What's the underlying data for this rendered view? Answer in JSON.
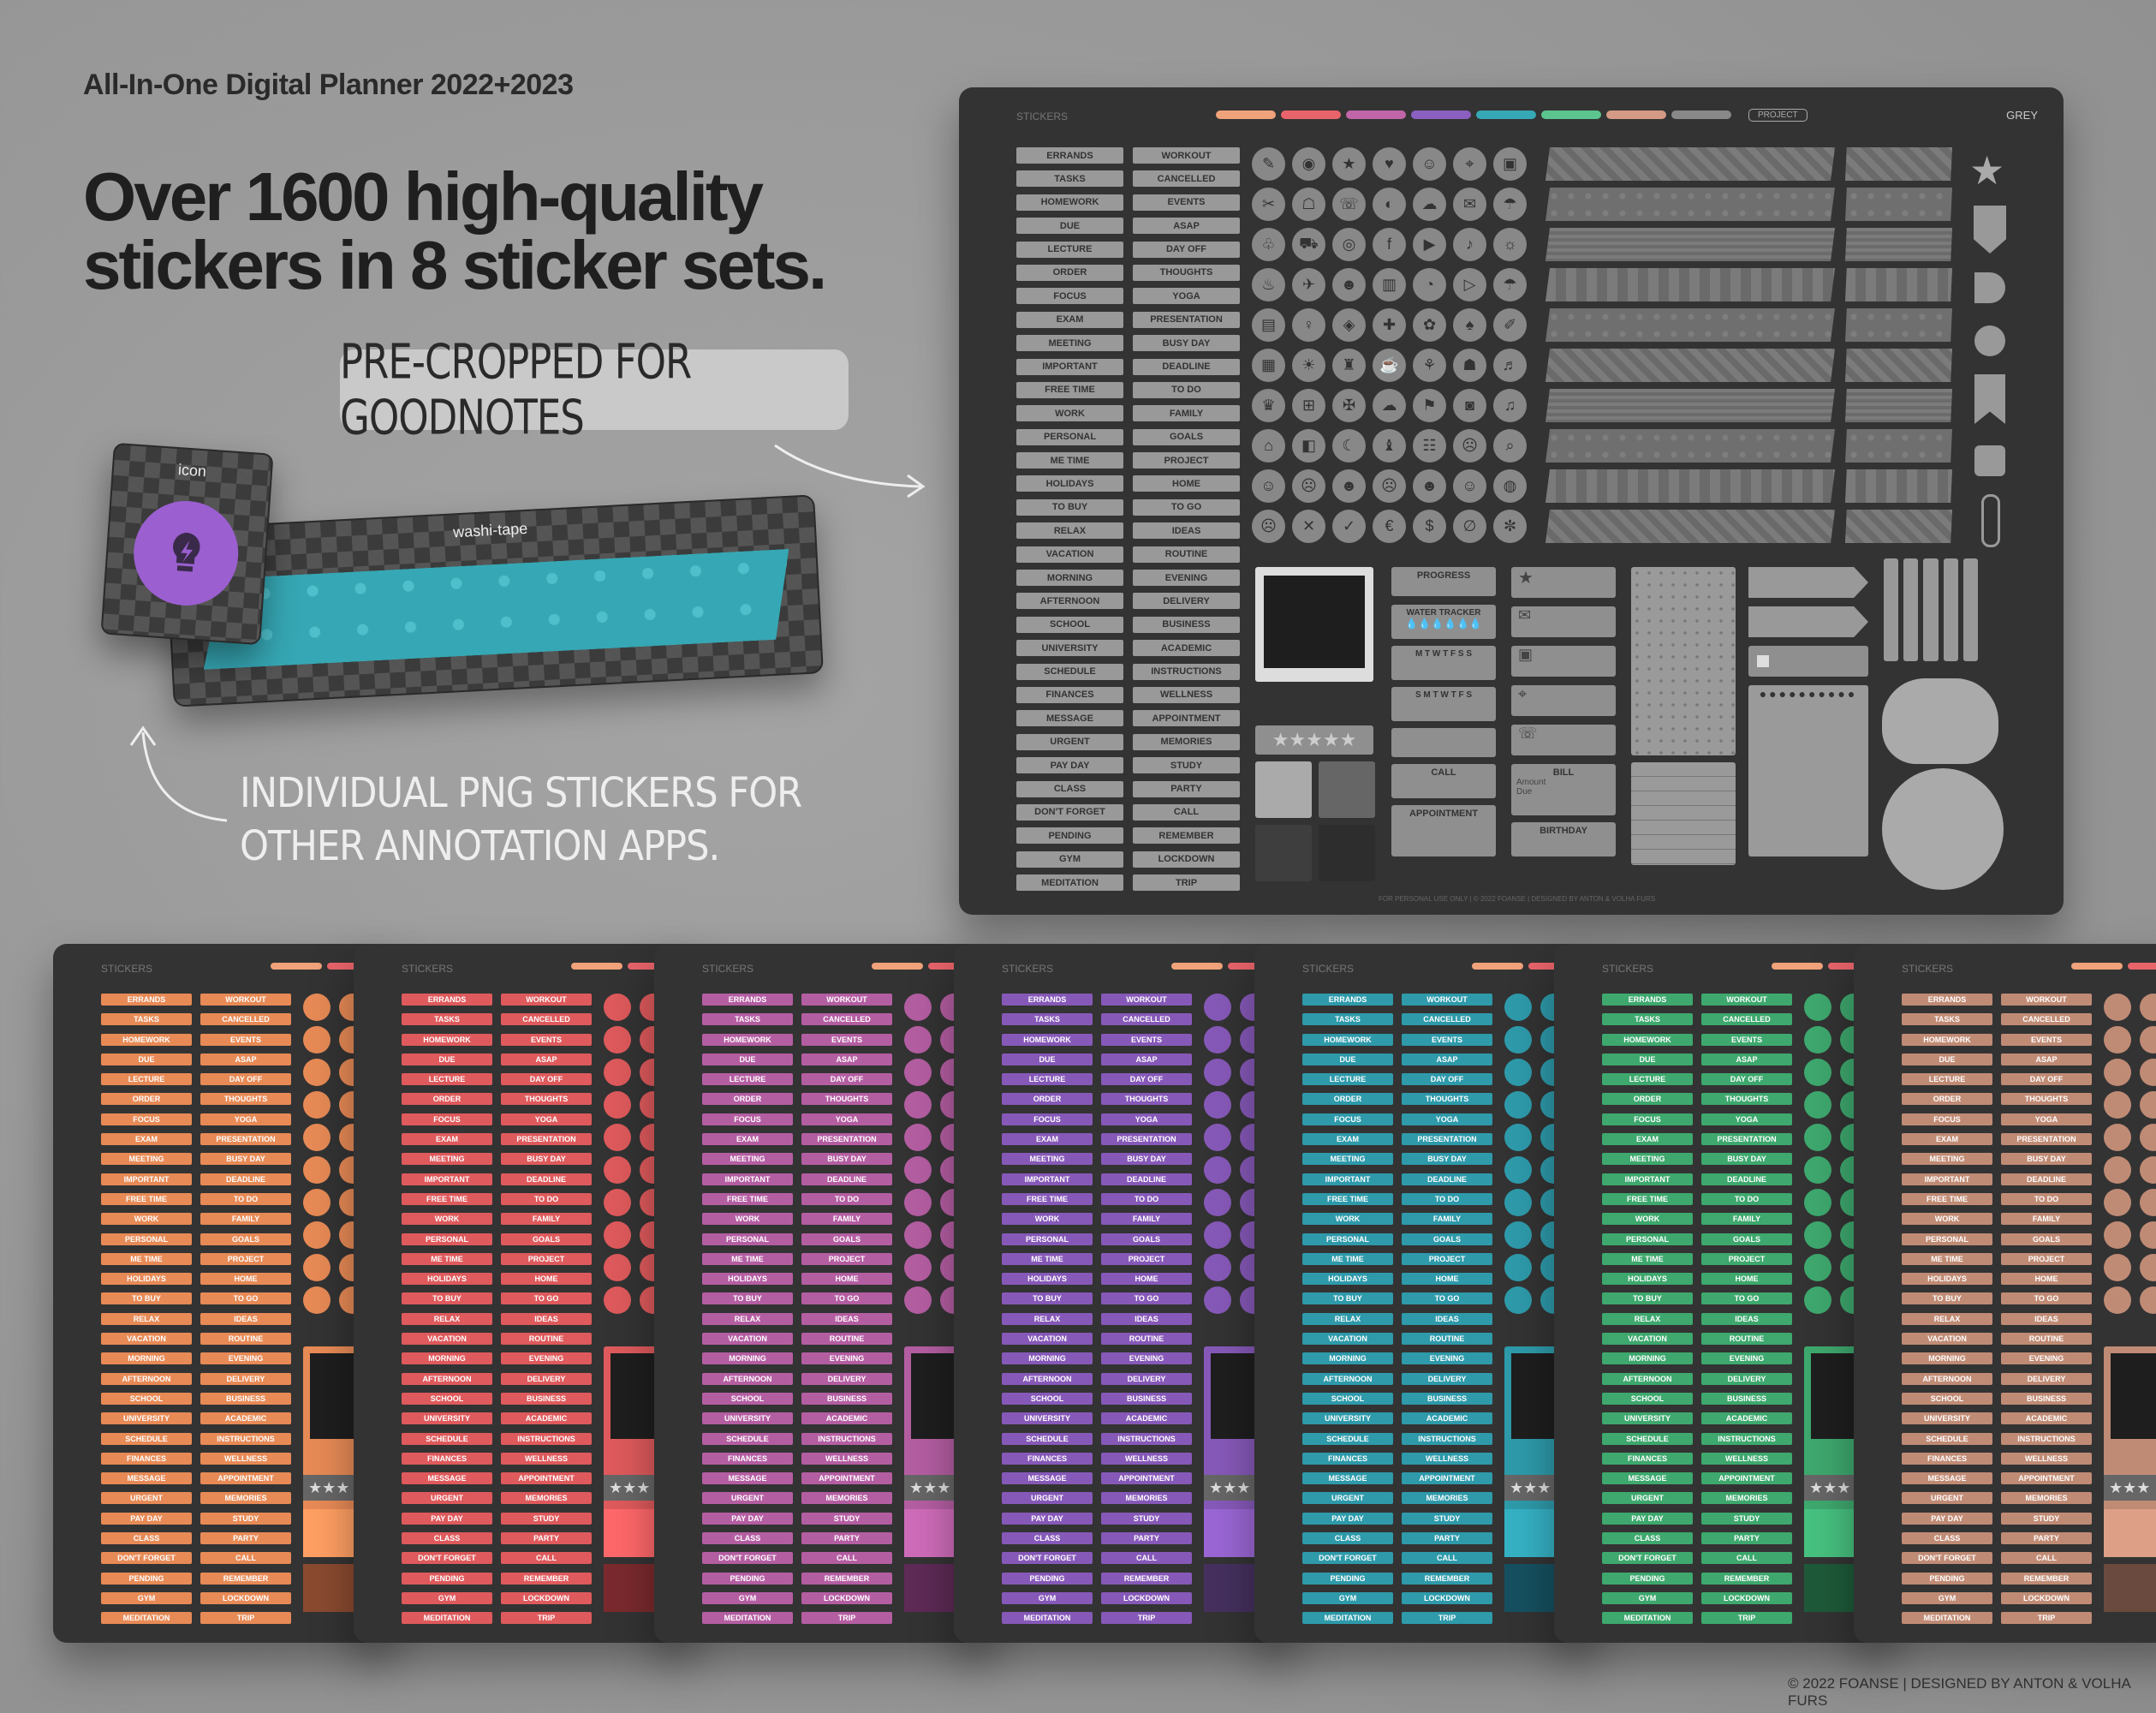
{
  "brand": "All-In-One Digital Planner 2022+2023",
  "headline": [
    "Over 1600 high-quality",
    "stickers in 8 sticker sets."
  ],
  "callout_goodnotes": "PRE-CROPPED FOR GOODNOTES",
  "callout_png": [
    "INDIVIDUAL PNG STICKERS FOR",
    "OTHER ANNOTATION APPS."
  ],
  "sample_icon_label": "icon",
  "sample_washi_label": "washi-tape",
  "copyright": "© 2022 FOANSE | DESIGNED BY ANTON & VOLHA FURS",
  "panel": {
    "title": "STICKERS",
    "project_tab": "PROJECT",
    "set_name": "GREY",
    "footer": "FOR PERSONAL USE ONLY | © 2022 FOANSE | DESIGNED BY ANTON & VOLHA FURS",
    "swatch_colors": [
      "#f0a27a",
      "#e8646a",
      "#c065a8",
      "#8a5fc0",
      "#36a7b4",
      "#5cc48e",
      "#d49a85",
      "#888888"
    ],
    "labels_col1": [
      "ERRANDS",
      "TASKS",
      "HOMEWORK",
      "DUE",
      "LECTURE",
      "ORDER",
      "FOCUS",
      "EXAM",
      "MEETING",
      "IMPORTANT",
      "FREE TIME",
      "WORK",
      "PERSONAL",
      "ME TIME",
      "HOLIDAYS",
      "TO BUY",
      "RELAX",
      "VACATION",
      "MORNING",
      "AFTERNOON",
      "SCHOOL",
      "UNIVERSITY",
      "SCHEDULE",
      "FINANCES",
      "MESSAGE",
      "URGENT",
      "PAY DAY",
      "CLASS",
      "DON'T FORGET",
      "PENDING",
      "GYM",
      "MEDITATION"
    ],
    "labels_col2": [
      "WORKOUT",
      "CANCELLED",
      "EVENTS",
      "ASAP",
      "DAY OFF",
      "THOUGHTS",
      "YOGA",
      "PRESENTATION",
      "BUSY DAY",
      "DEADLINE",
      "TO DO",
      "FAMILY",
      "GOALS",
      "PROJECT",
      "HOME",
      "TO GO",
      "IDEAS",
      "ROUTINE",
      "EVENING",
      "DELIVERY",
      "BUSINESS",
      "ACADEMIC",
      "INSTRUCTIONS",
      "WELLNESS",
      "APPOINTMENT",
      "MEMORIES",
      "STUDY",
      "PARTY",
      "CALL",
      "REMEMBER",
      "LOCKDOWN",
      "TRIP"
    ],
    "icons": [
      "✎",
      "◉",
      "★",
      "♥",
      "☺",
      "⌖",
      "▣",
      "✂",
      "☖",
      "☏",
      "◐",
      "☁",
      "✉",
      "☂",
      "♧",
      "⛟",
      "◎",
      "f",
      "▶",
      "♪",
      "☼",
      "♨",
      "✈",
      "☻",
      "▥",
      "◔",
      "▷",
      "☂",
      "▤",
      "♀",
      "◈",
      "✚",
      "✿",
      "♠",
      "✐",
      "▦",
      "☀",
      "♜",
      "☕",
      "⚘",
      "☗",
      "♬",
      "♛",
      "⊞",
      "✠",
      "☁",
      "⚑",
      "◙",
      "♫",
      "⌂",
      "◧",
      "☾",
      "♝",
      "☷",
      "☹",
      "⌕",
      "☺",
      "☹",
      "☻",
      "☹",
      "☻",
      "☺",
      "◍",
      "☹",
      "✕",
      "✓",
      "€",
      "$",
      "∅",
      "✼"
    ],
    "widgets": {
      "progress": "PROGRESS",
      "water_tracker": "WATER TRACKER",
      "week_mon": "M T W T F S S",
      "week_sun": "S M T W T F S",
      "call": "CALL",
      "appointment": "APPOINTMENT",
      "bill": "BILL",
      "amount": "Amount",
      "due": "Due",
      "birthday": "BIRTHDAY"
    }
  },
  "mini_sets": [
    {
      "color": "#e78a56",
      "dark": "#8a4a30"
    },
    {
      "color": "#de5a5c",
      "dark": "#7a2a2e"
    },
    {
      "color": "#b45ea2",
      "dark": "#5e2a56"
    },
    {
      "color": "#8659b8",
      "dark": "#45305e"
    },
    {
      "color": "#2e9aaa",
      "dark": "#165060"
    },
    {
      "color": "#3ea86e",
      "dark": "#1e5a3a"
    },
    {
      "color": "#c08b75",
      "dark": "#6a4a3e"
    }
  ]
}
